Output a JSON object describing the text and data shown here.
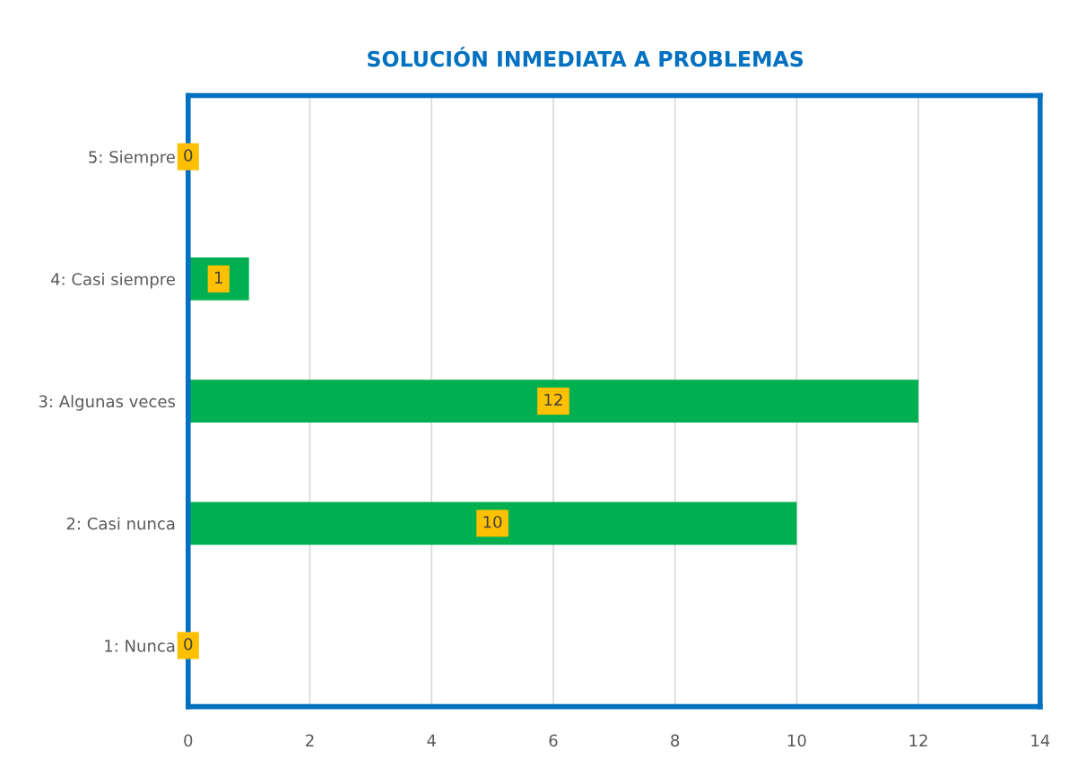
{
  "chart_data": {
    "type": "bar",
    "title": "SOLUCIÓN INMEDIATA A PROBLEMAS",
    "orientation": "horizontal",
    "categories": [
      "5: Siempre",
      "4: Casi siempre",
      "3: Algunas veces",
      "2: Casi nunca",
      "1: Nunca"
    ],
    "values": [
      0,
      1,
      12,
      10,
      0
    ],
    "color": "#00b050",
    "xlim": [
      0,
      14
    ],
    "xticks": [
      0,
      2,
      4,
      6,
      8,
      10,
      12,
      14
    ],
    "grid": "x",
    "data_labels": true,
    "legend": false
  }
}
